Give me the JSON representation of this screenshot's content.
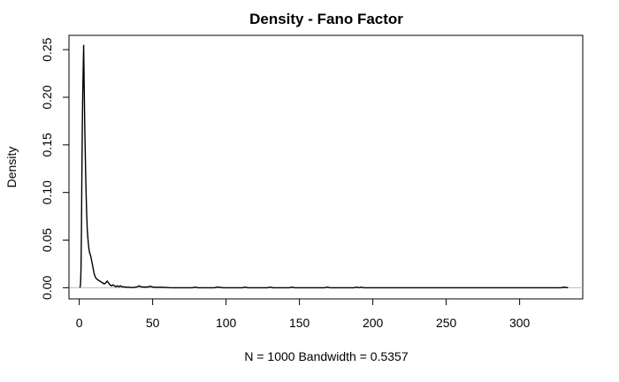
{
  "chart_data": {
    "type": "line",
    "title": "Density - Fano Factor",
    "xlabel": "N = 1000   Bandwidth = 0.5357",
    "ylabel": "Density",
    "xlim": [
      -7,
      343
    ],
    "ylim": [
      -0.0117,
      0.265
    ],
    "xticks": [
      "0",
      "50",
      "100",
      "150",
      "200",
      "250",
      "300"
    ],
    "yticks": [
      "0.00",
      "0.05",
      "0.10",
      "0.15",
      "0.20",
      "0.25"
    ],
    "grid": false,
    "zero_line": true,
    "series": [
      {
        "values": [
          [
            0.5,
            0.0
          ],
          [
            0.9,
            0.004
          ],
          [
            1.2,
            0.02
          ],
          [
            1.5,
            0.06
          ],
          [
            1.8,
            0.12
          ],
          [
            2.1,
            0.17
          ],
          [
            2.4,
            0.205
          ],
          [
            2.7,
            0.23
          ],
          [
            3.0,
            0.255
          ],
          [
            3.3,
            0.22
          ],
          [
            3.7,
            0.175
          ],
          [
            4.1,
            0.14
          ],
          [
            4.5,
            0.11
          ],
          [
            5.0,
            0.08
          ],
          [
            5.5,
            0.06
          ],
          [
            6.0,
            0.05
          ],
          [
            6.5,
            0.042
          ],
          [
            7.0,
            0.037
          ],
          [
            7.5,
            0.035
          ],
          [
            8.0,
            0.032
          ],
          [
            8.5,
            0.028
          ],
          [
            9.0,
            0.024
          ],
          [
            9.5,
            0.02
          ],
          [
            10.0,
            0.016
          ],
          [
            10.5,
            0.013
          ],
          [
            11.0,
            0.011
          ],
          [
            12.0,
            0.009
          ],
          [
            13.0,
            0.008
          ],
          [
            14.0,
            0.007
          ],
          [
            15.0,
            0.006
          ],
          [
            16.0,
            0.005
          ],
          [
            17.0,
            0.004
          ],
          [
            18.0,
            0.005
          ],
          [
            19.0,
            0.007
          ],
          [
            20.0,
            0.005
          ],
          [
            21.0,
            0.003
          ],
          [
            22.0,
            0.002
          ],
          [
            23.0,
            0.003
          ],
          [
            24.0,
            0.002
          ],
          [
            25.0,
            0.001
          ],
          [
            26.0,
            0.002
          ],
          [
            27.0,
            0.001
          ],
          [
            28.0,
            0.002
          ],
          [
            29.0,
            0.001
          ],
          [
            30.0,
            0.001
          ],
          [
            32.0,
            0.0005
          ],
          [
            34.0,
            0.0005
          ],
          [
            36.0,
            0.0002
          ],
          [
            38.0,
            0.0004
          ],
          [
            39.5,
            0.001
          ],
          [
            41.0,
            0.002
          ],
          [
            42.0,
            0.001
          ],
          [
            43.0,
            0.0008
          ],
          [
            44.0,
            0.0009
          ],
          [
            45.0,
            0.0005
          ],
          [
            46.0,
            0.001
          ],
          [
            47.0,
            0.0008
          ],
          [
            48.0,
            0.0015
          ],
          [
            49.0,
            0.0012
          ],
          [
            50.0,
            0.0008
          ],
          [
            51.0,
            0.0004
          ],
          [
            52.0,
            0.0005
          ],
          [
            53.0,
            0.0004
          ],
          [
            55.0,
            0.0005
          ],
          [
            57.0,
            0.0004
          ],
          [
            59.0,
            0.0003
          ],
          [
            61.0,
            0.0001
          ],
          [
            65.0,
            0.0
          ],
          [
            77.0,
            0.0
          ],
          [
            79.0,
            0.0006
          ],
          [
            81.0,
            0.0
          ],
          [
            92.0,
            0.0
          ],
          [
            94.0,
            0.0006
          ],
          [
            96.0,
            0.0004
          ],
          [
            98.0,
            0.0
          ],
          [
            111.0,
            0.0
          ],
          [
            113.0,
            0.0006
          ],
          [
            115.0,
            0.0
          ],
          [
            128.0,
            0.0
          ],
          [
            130.0,
            0.0006
          ],
          [
            132.0,
            0.0
          ],
          [
            143.0,
            0.0
          ],
          [
            145.0,
            0.0006
          ],
          [
            147.0,
            0.0
          ],
          [
            167.0,
            0.0
          ],
          [
            169.0,
            0.0006
          ],
          [
            171.0,
            0.0
          ],
          [
            187.0,
            0.0
          ],
          [
            189.0,
            0.0006
          ],
          [
            191.0,
            0.0
          ],
          [
            192.0,
            0.0006
          ],
          [
            194.0,
            0.0
          ],
          [
            328.0,
            0.0
          ],
          [
            330.5,
            0.0006
          ],
          [
            333.0,
            0.0
          ]
        ]
      }
    ]
  }
}
